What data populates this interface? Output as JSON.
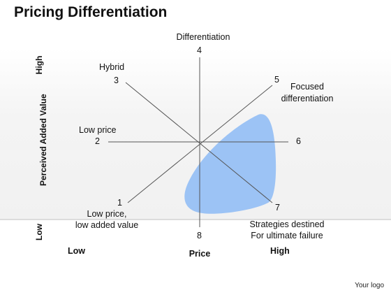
{
  "title": "Pricing Differentiation",
  "axes": {
    "y_label": "Perceived Added Value",
    "y_high": "High",
    "y_low": "Low",
    "x_label": "Price",
    "x_low": "Low",
    "x_high": "High"
  },
  "points": [
    {
      "number": "1",
      "label": "Low price,\nlow added value"
    },
    {
      "number": "2",
      "label": "Low price"
    },
    {
      "number": "3",
      "label": "Hybrid"
    },
    {
      "number": "4",
      "label": "Differentiation"
    },
    {
      "number": "5",
      "label": "Focused\ndifferentiation"
    },
    {
      "number": "6",
      "label": ""
    },
    {
      "number": "7",
      "label": "Strategies destined\nFor ultimate failure"
    },
    {
      "number": "8",
      "label": ""
    }
  ],
  "colors": {
    "line": "#555555",
    "region": "#9cc3f5"
  },
  "logo": "Your logo"
}
